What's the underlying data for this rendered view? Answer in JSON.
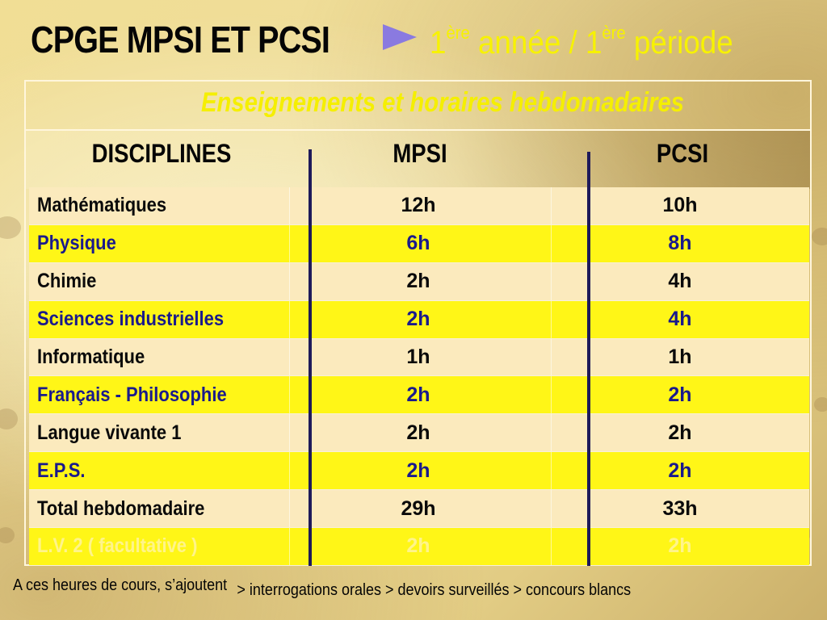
{
  "header": {
    "title_left": "CPGE MPSI  ET PCSI",
    "arrow_icon": "right-triangle-arrow",
    "title_right": {
      "num1": "1",
      "sup1": "ère",
      "mid": " année / ",
      "num2": "1",
      "sup2": "ère",
      "end": " période"
    }
  },
  "table": {
    "caption": "Enseignements et horaires hebdomadaires",
    "columns": [
      "DISCIPLINES",
      "MPSI",
      "PCSI"
    ],
    "rows": [
      {
        "discipline": "Mathématiques",
        "mpsi": "12h",
        "pcsi": "10h",
        "style": "light"
      },
      {
        "discipline": "Physique",
        "mpsi": "6h",
        "pcsi": "8h",
        "style": "yellow"
      },
      {
        "discipline": "Chimie",
        "mpsi": "2h",
        "pcsi": "4h",
        "style": "light"
      },
      {
        "discipline": "Sciences industrielles",
        "mpsi": "2h",
        "pcsi": "4h",
        "style": "yellow"
      },
      {
        "discipline": "Informatique",
        "mpsi": "1h",
        "pcsi": "1h",
        "style": "light"
      },
      {
        "discipline": "Français - Philosophie",
        "mpsi": "2h",
        "pcsi": "2h",
        "style": "yellow"
      },
      {
        "discipline": "Langue vivante 1",
        "mpsi": "2h",
        "pcsi": "2h",
        "style": "light"
      },
      {
        "discipline": "E.P.S.",
        "mpsi": "2h",
        "pcsi": "2h",
        "style": "yellow"
      },
      {
        "discipline": "Total hebdomadaire",
        "mpsi": "29h",
        "pcsi": "33h",
        "style": "light"
      },
      {
        "discipline": "L.V. 2  ( facultative )",
        "mpsi": "2h",
        "pcsi": "2h",
        "style": "yellow ghost"
      }
    ]
  },
  "footer": {
    "lead": "A ces heures de cours, s’ajoutent",
    "items": "> interrogations orales  > devoirs surveillés  > concours blancs"
  },
  "colors": {
    "title_yellow": "#f7f200",
    "row_light": "#fbeabd",
    "row_yellow": "#fff617",
    "text_blue": "#1a1a8c",
    "arrow_violet": "#8a7ae0"
  }
}
